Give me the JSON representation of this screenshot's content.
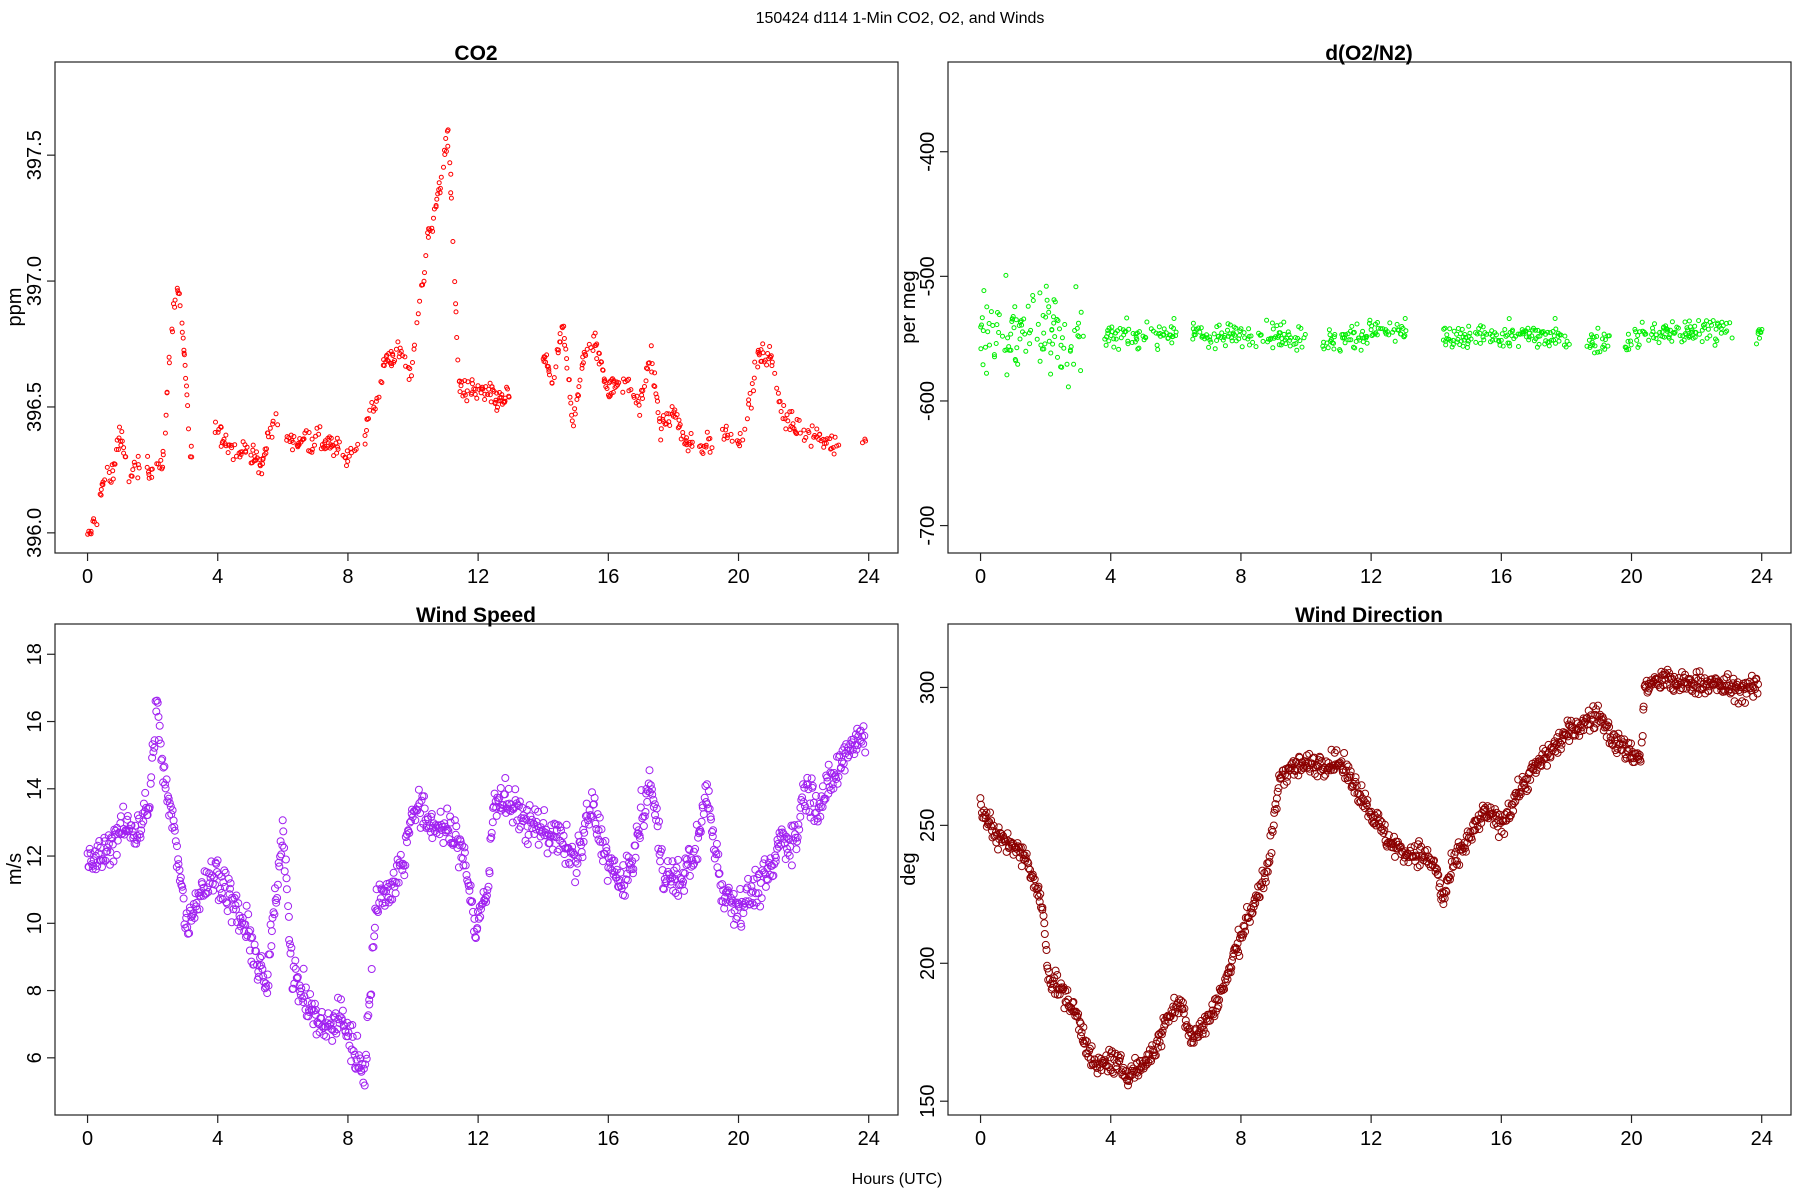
{
  "figure": {
    "title": "150424   d114   1-Min CO2, O2, and Winds",
    "xlabel": "Hours (UTC)"
  },
  "chart_data": [
    {
      "type": "scatter",
      "title": "CO2",
      "xlabel": "",
      "ylabel": "ppm",
      "xlim": [
        -1,
        24.9
      ],
      "ylim": [
        395.92,
        397.87
      ],
      "xticks": [
        0,
        4,
        8,
        12,
        16,
        20,
        24
      ],
      "yticks": [
        396.0,
        396.5,
        397.0,
        397.5
      ],
      "ytick_labels": [
        "396.0",
        "396.5",
        "397.0",
        "397.5"
      ],
      "color": "#ff0000",
      "marker_radius": 2,
      "outline": [
        [
          0,
          395.97
        ],
        [
          0.25,
          396.06
        ],
        [
          0.5,
          396.2
        ],
        [
          0.75,
          396.23
        ],
        [
          1,
          396.4
        ],
        [
          1.25,
          396.22
        ],
        [
          1.5,
          396.26
        ],
        [
          2,
          396.27
        ],
        [
          2.3,
          396.25
        ],
        [
          2.55,
          396.78
        ],
        [
          2.75,
          396.98
        ],
        [
          2.9,
          396.85
        ],
        [
          3.15,
          396.32
        ],
        [
          4,
          396.4
        ],
        [
          4.5,
          396.33
        ],
        [
          5,
          396.32
        ],
        [
          5.35,
          396.27
        ],
        [
          5.7,
          396.45
        ],
        [
          6,
          396.37
        ],
        [
          6.5,
          396.37
        ],
        [
          7,
          396.37
        ],
        [
          7.5,
          396.35
        ],
        [
          8,
          396.3
        ],
        [
          8.5,
          396.4
        ],
        [
          8.8,
          396.5
        ],
        [
          9.2,
          396.7
        ],
        [
          9.6,
          396.72
        ],
        [
          9.9,
          396.6
        ],
        [
          10.5,
          397.2
        ],
        [
          10.8,
          397.35
        ],
        [
          11.1,
          397.6
        ],
        [
          11.4,
          396.58
        ],
        [
          11.8,
          396.57
        ],
        [
          12.3,
          396.55
        ],
        [
          12.8,
          396.52
        ],
        [
          14,
          396.7
        ],
        [
          14.3,
          396.6
        ],
        [
          14.6,
          396.82
        ],
        [
          14.9,
          396.45
        ],
        [
          15.3,
          396.72
        ],
        [
          15.6,
          396.75
        ],
        [
          16,
          396.58
        ],
        [
          16.5,
          396.6
        ],
        [
          17,
          396.5
        ],
        [
          17.3,
          396.72
        ],
        [
          17.6,
          396.42
        ],
        [
          18,
          396.48
        ],
        [
          18.4,
          396.35
        ],
        [
          19,
          396.35
        ],
        [
          19.6,
          396.4
        ],
        [
          20.1,
          396.36
        ],
        [
          20.6,
          396.7
        ],
        [
          21,
          396.7
        ],
        [
          21.4,
          396.45
        ],
        [
          22,
          396.4
        ],
        [
          22.5,
          396.38
        ],
        [
          23,
          396.35
        ],
        [
          23.9,
          396.35
        ]
      ],
      "noise": 0.055,
      "gaps": [
        [
          1.6,
          1.8
        ],
        [
          3.2,
          3.9
        ],
        [
          5.9,
          6.1
        ],
        [
          8.3,
          8.5
        ],
        [
          13,
          14
        ],
        [
          18.6,
          18.8
        ],
        [
          19.2,
          19.5
        ],
        [
          23.1,
          23.8
        ]
      ]
    },
    {
      "type": "scatter",
      "title": "d(O2/N2)",
      "xlabel": "",
      "ylabel": "per meg",
      "xlim": [
        -1,
        24.9
      ],
      "ylim": [
        -722,
        -328
      ],
      "xticks": [
        0,
        4,
        8,
        12,
        16,
        20,
        24
      ],
      "yticks": [
        -700,
        -600,
        -500,
        -400
      ],
      "ytick_labels": [
        "-700",
        "-600",
        "-500",
        "-400"
      ],
      "color": "#00ee00",
      "marker_radius": 2,
      "outline": [
        [
          0,
          -545
        ],
        [
          0.5,
          -545
        ],
        [
          1,
          -545
        ],
        [
          1.5,
          -545
        ],
        [
          2,
          -540
        ],
        [
          2.5,
          -545
        ],
        [
          3,
          -545
        ],
        [
          4,
          -548
        ],
        [
          5,
          -548
        ],
        [
          6,
          -545
        ],
        [
          7,
          -548
        ],
        [
          8,
          -548
        ],
        [
          9,
          -546
        ],
        [
          10,
          -548
        ],
        [
          11,
          -552
        ],
        [
          12,
          -545
        ],
        [
          13,
          -546
        ],
        [
          14,
          -550
        ],
        [
          15,
          -550
        ],
        [
          16,
          -548
        ],
        [
          17,
          -548
        ],
        [
          18,
          -548
        ],
        [
          19,
          -552
        ],
        [
          20,
          -550
        ],
        [
          21,
          -545
        ],
        [
          22,
          -545
        ],
        [
          23,
          -540
        ],
        [
          24,
          -548
        ]
      ],
      "noise": 12,
      "gaps": [
        [
          3.3,
          3.8
        ],
        [
          6,
          6.5
        ],
        [
          10,
          10.5
        ],
        [
          13.1,
          14.2
        ],
        [
          18.1,
          18.6
        ],
        [
          19.4,
          19.8
        ],
        [
          23.1,
          23.8
        ]
      ]
    },
    {
      "type": "scatter",
      "title": "Wind Speed",
      "xlabel": "",
      "ylabel": "m/s",
      "xlim": [
        -1,
        24.9
      ],
      "ylim": [
        4.3,
        18.9
      ],
      "xticks": [
        0,
        4,
        8,
        12,
        16,
        20,
        24
      ],
      "yticks": [
        6,
        8,
        10,
        12,
        14,
        16,
        18
      ],
      "ytick_labels": [
        "6",
        "8",
        "10",
        "12",
        "14",
        "16",
        "18"
      ],
      "color": "#a020f0",
      "marker_radius": 3.5,
      "outline": [
        [
          0,
          11.8
        ],
        [
          0.5,
          12
        ],
        [
          1,
          12.8
        ],
        [
          1.5,
          12.8
        ],
        [
          1.9,
          13.5
        ],
        [
          2.1,
          16.5
        ],
        [
          2.4,
          14
        ],
        [
          2.8,
          12
        ],
        [
          3,
          10
        ],
        [
          3.5,
          11
        ],
        [
          4,
          11.5
        ],
        [
          4.5,
          10.5
        ],
        [
          5,
          9.5
        ],
        [
          5.5,
          8
        ],
        [
          5.8,
          11
        ],
        [
          6,
          13
        ],
        [
          6.3,
          8.5
        ],
        [
          6.8,
          7.5
        ],
        [
          7.3,
          6.8
        ],
        [
          7.8,
          7.3
        ],
        [
          8.2,
          6.2
        ],
        [
          8.5,
          5.6
        ],
        [
          8.9,
          10.8
        ],
        [
          9.3,
          11
        ],
        [
          9.7,
          11.8
        ],
        [
          10,
          13.5
        ],
        [
          10.5,
          13
        ],
        [
          11,
          12.8
        ],
        [
          11.3,
          12.5
        ],
        [
          11.6,
          12
        ],
        [
          11.9,
          9.8
        ],
        [
          12.3,
          11
        ],
        [
          12.5,
          13.8
        ],
        [
          13,
          13.5
        ],
        [
          13.5,
          13
        ],
        [
          14,
          12.8
        ],
        [
          14.5,
          12.5
        ],
        [
          15,
          11.8
        ],
        [
          15.5,
          13.5
        ],
        [
          16,
          11.8
        ],
        [
          16.5,
          11
        ],
        [
          17,
          13
        ],
        [
          17.3,
          14.2
        ],
        [
          17.7,
          11.5
        ],
        [
          18.2,
          11.2
        ],
        [
          18.8,
          12.5
        ],
        [
          19,
          14
        ],
        [
          19.5,
          11
        ],
        [
          20,
          10.5
        ],
        [
          20.5,
          11
        ],
        [
          21,
          11.5
        ],
        [
          21.3,
          12.5
        ],
        [
          21.8,
          12.5
        ],
        [
          22,
          14
        ],
        [
          22.5,
          13.5
        ],
        [
          23,
          14.5
        ],
        [
          23.5,
          15.5
        ],
        [
          23.9,
          15.5
        ]
      ],
      "noise": 0.7,
      "gaps": []
    },
    {
      "type": "scatter",
      "title": "Wind Direction",
      "xlabel": "",
      "ylabel": "deg",
      "xlim": [
        -1,
        24.9
      ],
      "ylim": [
        145,
        323
      ],
      "xticks": [
        0,
        4,
        8,
        12,
        16,
        20,
        24
      ],
      "yticks": [
        150,
        200,
        250,
        300
      ],
      "ytick_labels": [
        "150",
        "200",
        "250",
        "300"
      ],
      "color": "#8b0000",
      "marker_radius": 3.5,
      "outline": [
        [
          0,
          258
        ],
        [
          0.5,
          245
        ],
        [
          1,
          243
        ],
        [
          1.5,
          235
        ],
        [
          1.9,
          220
        ],
        [
          2.1,
          195
        ],
        [
          2.5,
          190
        ],
        [
          3,
          180
        ],
        [
          3.5,
          162
        ],
        [
          4,
          165
        ],
        [
          4.5,
          160
        ],
        [
          5,
          163
        ],
        [
          5.5,
          172
        ],
        [
          5.8,
          182
        ],
        [
          6.2,
          185
        ],
        [
          6.5,
          172
        ],
        [
          7,
          180
        ],
        [
          7.5,
          192
        ],
        [
          8,
          210
        ],
        [
          8.5,
          225
        ],
        [
          8.8,
          232
        ],
        [
          9.2,
          268
        ],
        [
          9.5,
          271
        ],
        [
          10,
          272
        ],
        [
          11,
          273
        ],
        [
          11.5,
          265
        ],
        [
          12,
          255
        ],
        [
          12.5,
          245
        ],
        [
          13,
          240
        ],
        [
          13.5,
          240
        ],
        [
          14,
          235
        ],
        [
          14.2,
          222
        ],
        [
          14.5,
          235
        ],
        [
          15,
          245
        ],
        [
          15.5,
          255
        ],
        [
          16,
          250
        ],
        [
          16.5,
          262
        ],
        [
          17,
          270
        ],
        [
          17.5,
          277
        ],
        [
          18,
          283
        ],
        [
          18.5,
          287
        ],
        [
          19,
          290
        ],
        [
          19.5,
          280
        ],
        [
          20,
          276
        ],
        [
          20.3,
          275
        ],
        [
          20.4,
          300
        ],
        [
          21,
          303
        ],
        [
          21.5,
          301
        ],
        [
          22,
          302
        ],
        [
          22.5,
          301
        ],
        [
          23,
          300
        ],
        [
          23.5,
          299
        ],
        [
          23.9,
          300
        ]
      ],
      "noise": 5,
      "gaps": []
    }
  ]
}
